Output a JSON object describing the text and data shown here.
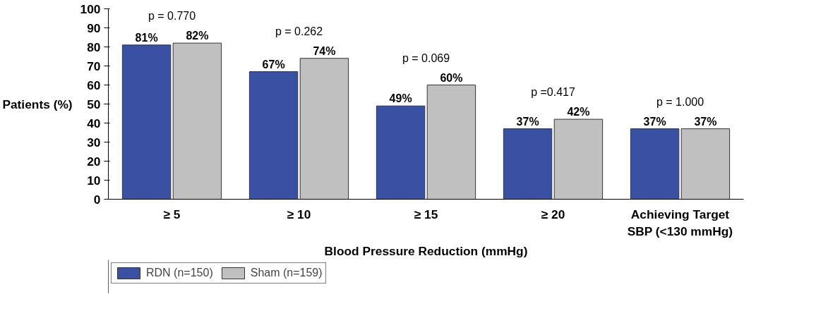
{
  "chart_data": {
    "type": "bar",
    "xlabel": "Blood Pressure Reduction (mmHg)",
    "ylabel": "Patients (%)",
    "categories": [
      "≥ 5",
      "≥ 10",
      "≥ 15",
      "≥ 20",
      "Achieving Target\nSBP (<130 mmHg)"
    ],
    "series": [
      {
        "name": "RDN (n=150)",
        "color": "#3a51a3",
        "values": [
          81,
          67,
          49,
          37,
          37
        ],
        "value_labels": [
          "81%",
          "67%",
          "49%",
          "37%",
          "37%"
        ]
      },
      {
        "name": "Sham (n=159)",
        "color": "#c0c0c0",
        "values": [
          82,
          74,
          60,
          42,
          37
        ],
        "value_labels": [
          "82%",
          "74%",
          "60%",
          "42%",
          "37%"
        ]
      }
    ],
    "ylim": [
      0,
      100
    ],
    "yticks": [
      0,
      10,
      20,
      30,
      40,
      50,
      60,
      70,
      80,
      90,
      100
    ],
    "grid": false,
    "legend": "bottom left",
    "annotations": [
      "p = 0.770",
      "p = 0.262",
      "p = 0.069",
      "p =0.417",
      "p = 1.000"
    ]
  }
}
